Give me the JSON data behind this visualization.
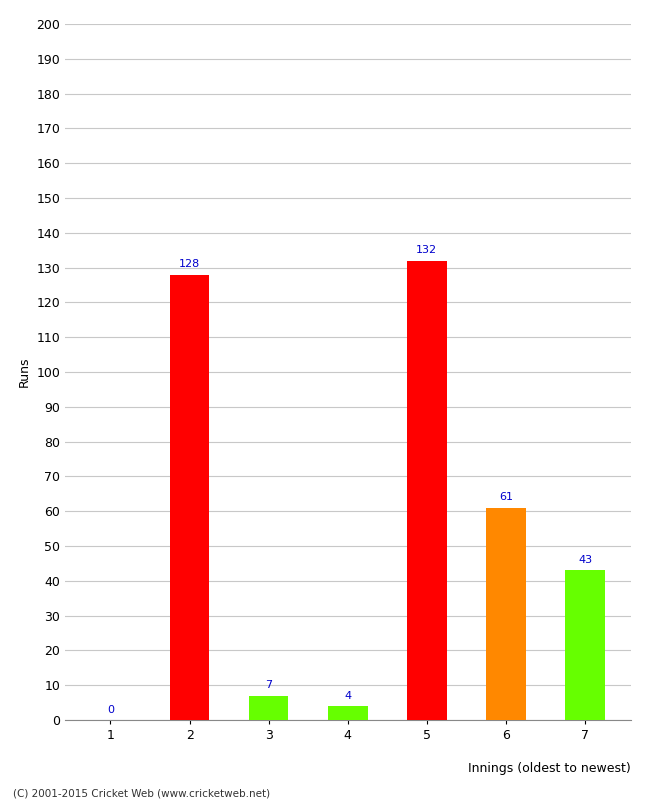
{
  "categories": [
    "1",
    "2",
    "3",
    "4",
    "5",
    "6",
    "7"
  ],
  "values": [
    0,
    128,
    7,
    4,
    132,
    61,
    43
  ],
  "bar_colors": [
    "#ff0000",
    "#ff0000",
    "#66ff00",
    "#66ff00",
    "#ff0000",
    "#ff8800",
    "#66ff00"
  ],
  "xlabel": "Innings (oldest to newest)",
  "ylabel": "Runs",
  "ylim": [
    0,
    200
  ],
  "yticks": [
    0,
    10,
    20,
    30,
    40,
    50,
    60,
    70,
    80,
    90,
    100,
    110,
    120,
    130,
    140,
    150,
    160,
    170,
    180,
    190,
    200
  ],
  "label_color": "#0000cc",
  "label_fontsize": 8,
  "footer": "(C) 2001-2015 Cricket Web (www.cricketweb.net)",
  "background_color": "#ffffff",
  "grid_color": "#c8c8c8"
}
